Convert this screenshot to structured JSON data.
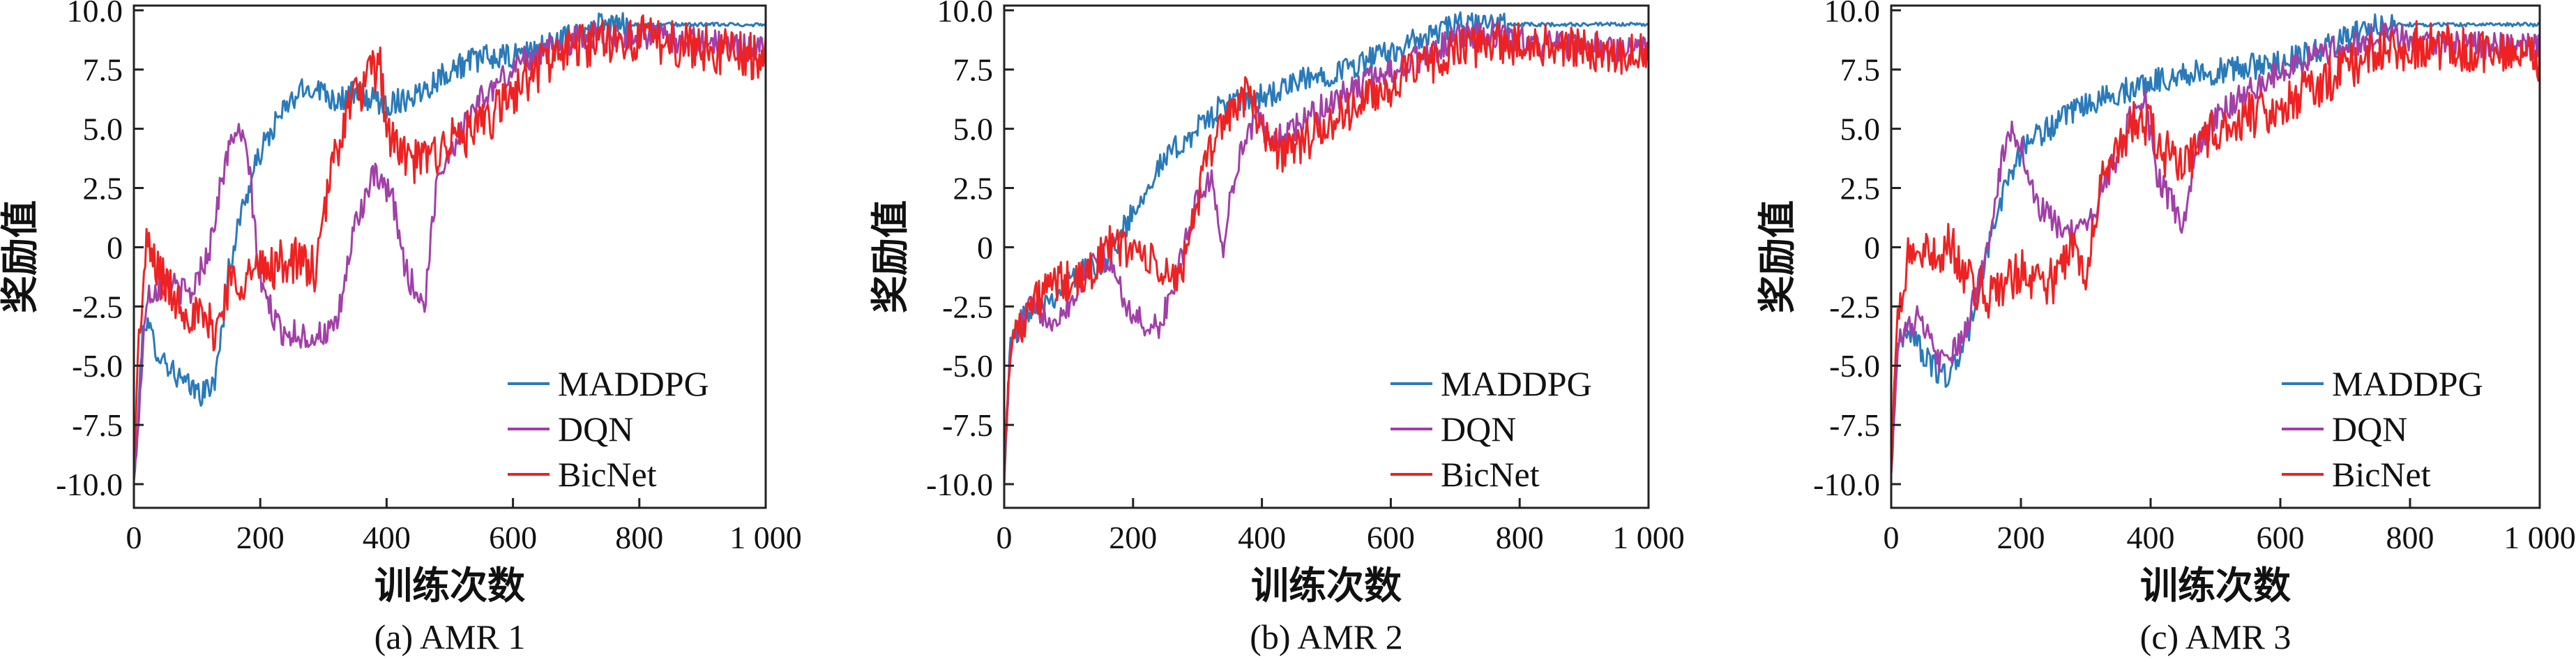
{
  "chart_data": [
    {
      "type": "line",
      "caption": "(a) AMR 1",
      "xlabel": "训练次数",
      "ylabel": "奖励值",
      "xlim": [
        0,
        1000
      ],
      "ylim": [
        -11,
        10.2
      ],
      "x_ticks": [
        "0",
        "200",
        "400",
        "600",
        "800",
        "1 000"
      ],
      "y_ticks": [
        "10.0",
        "7.5",
        "5.0",
        "2.5",
        "0",
        "-2.5",
        "-5.0",
        "-7.5",
        "-10.0"
      ],
      "legend_position": "bottom-right",
      "grid": false,
      "series": [
        {
          "name": "MADDPG",
          "color": "#2a7ab9",
          "noise": 0.55,
          "points": [
            [
              0,
              -10
            ],
            [
              5,
              -8
            ],
            [
              15,
              -3
            ],
            [
              40,
              -4.5
            ],
            [
              80,
              -5.8
            ],
            [
              110,
              -6.2
            ],
            [
              130,
              -5.5
            ],
            [
              150,
              -1
            ],
            [
              170,
              1.5
            ],
            [
              200,
              4
            ],
            [
              230,
              5.5
            ],
            [
              260,
              6.5
            ],
            [
              290,
              6.8
            ],
            [
              320,
              6.2
            ],
            [
              350,
              6.5
            ],
            [
              400,
              6
            ],
            [
              450,
              6.5
            ],
            [
              500,
              7.5
            ],
            [
              550,
              8
            ],
            [
              600,
              8
            ],
            [
              650,
              8.5
            ],
            [
              700,
              9
            ],
            [
              730,
              9.3
            ],
            [
              760,
              9.4
            ],
            [
              1000,
              9.4
            ]
          ]
        },
        {
          "name": "DQN",
          "color": "#a23fa8",
          "noise": 0.6,
          "points": [
            [
              0,
              -10
            ],
            [
              8,
              -7
            ],
            [
              20,
              -2
            ],
            [
              50,
              -1.5
            ],
            [
              90,
              -2
            ],
            [
              120,
              0
            ],
            [
              140,
              3
            ],
            [
              160,
              5
            ],
            [
              180,
              4
            ],
            [
              200,
              -1.5
            ],
            [
              230,
              -3.5
            ],
            [
              280,
              -3.8
            ],
            [
              320,
              -3.5
            ],
            [
              350,
              1
            ],
            [
              380,
              3
            ],
            [
              410,
              2
            ],
            [
              430,
              -1
            ],
            [
              460,
              -2.5
            ],
            [
              480,
              3
            ],
            [
              500,
              4
            ],
            [
              540,
              6
            ],
            [
              580,
              7
            ],
            [
              620,
              8
            ],
            [
              680,
              8.5
            ],
            [
              720,
              9
            ],
            [
              760,
              8.8
            ],
            [
              800,
              9
            ],
            [
              1000,
              8.3
            ]
          ]
        },
        {
          "name": "BicNet",
          "color": "#ee2222",
          "noise": 1.0,
          "points": [
            [
              0,
              -9
            ],
            [
              8,
              -4
            ],
            [
              20,
              0
            ],
            [
              60,
              -2
            ],
            [
              100,
              -3
            ],
            [
              130,
              -3.5
            ],
            [
              150,
              -1.5
            ],
            [
              200,
              -1
            ],
            [
              250,
              -0.5
            ],
            [
              290,
              -1
            ],
            [
              310,
              3
            ],
            [
              340,
              6
            ],
            [
              370,
              7
            ],
            [
              390,
              7.8
            ],
            [
              400,
              5
            ],
            [
              420,
              4
            ],
            [
              450,
              3.5
            ],
            [
              500,
              4.5
            ],
            [
              550,
              5
            ],
            [
              600,
              6.5
            ],
            [
              650,
              7.8
            ],
            [
              700,
              8.5
            ],
            [
              760,
              8.8
            ],
            [
              820,
              8.8
            ],
            [
              900,
              8.4
            ],
            [
              1000,
              8
            ]
          ]
        }
      ]
    },
    {
      "type": "line",
      "caption": "(b) AMR 2",
      "xlabel": "训练次数",
      "ylabel": "奖励值",
      "xlim": [
        0,
        1000
      ],
      "ylim": [
        -11,
        10.2
      ],
      "x_ticks": [
        "0",
        "200",
        "400",
        "600",
        "800",
        "1 000"
      ],
      "y_ticks": [
        "10.0",
        "7.5",
        "5.0",
        "2.5",
        "0",
        "-2.5",
        "-5.0",
        "-7.5",
        "-10.0"
      ],
      "legend_position": "bottom-right",
      "grid": false,
      "series": [
        {
          "name": "MADDPG",
          "color": "#2a7ab9",
          "noise": 0.55,
          "points": [
            [
              0,
              -9.5
            ],
            [
              10,
              -4
            ],
            [
              40,
              -2.5
            ],
            [
              80,
              -2
            ],
            [
              120,
              -1
            ],
            [
              160,
              -0.5
            ],
            [
              200,
              1.5
            ],
            [
              230,
              3
            ],
            [
              260,
              4
            ],
            [
              300,
              5
            ],
            [
              340,
              6
            ],
            [
              380,
              6.2
            ],
            [
              420,
              6.5
            ],
            [
              460,
              7
            ],
            [
              500,
              7.3
            ],
            [
              560,
              7.8
            ],
            [
              620,
              8.5
            ],
            [
              670,
              9
            ],
            [
              700,
              9.4
            ],
            [
              1000,
              9.4
            ]
          ]
        },
        {
          "name": "DQN",
          "color": "#a23fa8",
          "noise": 0.6,
          "points": [
            [
              0,
              -9.5
            ],
            [
              10,
              -4
            ],
            [
              40,
              -2.5
            ],
            [
              80,
              -3
            ],
            [
              110,
              -2
            ],
            [
              140,
              0
            ],
            [
              170,
              -1
            ],
            [
              200,
              -3
            ],
            [
              240,
              -3.5
            ],
            [
              270,
              -1
            ],
            [
              300,
              2
            ],
            [
              320,
              3
            ],
            [
              340,
              0
            ],
            [
              360,
              3.5
            ],
            [
              390,
              5.5
            ],
            [
              420,
              4.5
            ],
            [
              450,
              5
            ],
            [
              500,
              6
            ],
            [
              550,
              6.8
            ],
            [
              600,
              7.5
            ],
            [
              650,
              8
            ],
            [
              700,
              8.8
            ],
            [
              760,
              9
            ],
            [
              820,
              8.6
            ],
            [
              1000,
              8.3
            ]
          ]
        },
        {
          "name": "BicNet",
          "color": "#ee2222",
          "noise": 0.9,
          "points": [
            [
              0,
              -9.5
            ],
            [
              10,
              -4
            ],
            [
              40,
              -2.5
            ],
            [
              80,
              -1.5
            ],
            [
              120,
              -1.5
            ],
            [
              160,
              0
            ],
            [
              200,
              0
            ],
            [
              240,
              -1
            ],
            [
              270,
              -1.5
            ],
            [
              300,
              2
            ],
            [
              330,
              5
            ],
            [
              360,
              6
            ],
            [
              380,
              6.5
            ],
            [
              400,
              5
            ],
            [
              430,
              4
            ],
            [
              470,
              4.5
            ],
            [
              520,
              5.5
            ],
            [
              580,
              6.5
            ],
            [
              640,
              7.5
            ],
            [
              700,
              8.3
            ],
            [
              760,
              8.6
            ],
            [
              850,
              8.5
            ],
            [
              1000,
              8.1
            ]
          ]
        }
      ]
    },
    {
      "type": "line",
      "caption": "(c) AMR 3",
      "xlabel": "训练次数",
      "ylabel": "奖励值",
      "xlim": [
        0,
        1000
      ],
      "ylim": [
        -11,
        10.2
      ],
      "x_ticks": [
        "0",
        "200",
        "400",
        "600",
        "800",
        "1 000"
      ],
      "y_ticks": [
        "10.0",
        "7.5",
        "5.0",
        "2.5",
        "0",
        "-2.5",
        "-5.0",
        "-7.5",
        "-10.0"
      ],
      "legend_position": "bottom-right",
      "grid": false,
      "series": [
        {
          "name": "MADDPG",
          "color": "#2a7ab9",
          "noise": 0.55,
          "points": [
            [
              0,
              -9.5
            ],
            [
              10,
              -4
            ],
            [
              30,
              -3.5
            ],
            [
              60,
              -5
            ],
            [
              90,
              -5.5
            ],
            [
              120,
              -3.5
            ],
            [
              150,
              0
            ],
            [
              180,
              3
            ],
            [
              210,
              4.5
            ],
            [
              260,
              5.3
            ],
            [
              300,
              6
            ],
            [
              350,
              6.5
            ],
            [
              400,
              7
            ],
            [
              450,
              7.3
            ],
            [
              500,
              7.4
            ],
            [
              550,
              7.6
            ],
            [
              600,
              7.8
            ],
            [
              650,
              8.2
            ],
            [
              700,
              8.8
            ],
            [
              740,
              9.3
            ],
            [
              770,
              9.4
            ],
            [
              1000,
              9.4
            ]
          ]
        },
        {
          "name": "DQN",
          "color": "#a23fa8",
          "noise": 0.6,
          "points": [
            [
              0,
              -9.5
            ],
            [
              10,
              -4
            ],
            [
              40,
              -3
            ],
            [
              80,
              -5
            ],
            [
              110,
              -4
            ],
            [
              140,
              -1
            ],
            [
              160,
              2
            ],
            [
              180,
              5
            ],
            [
              200,
              4.5
            ],
            [
              220,
              2
            ],
            [
              250,
              1
            ],
            [
              290,
              0.5
            ],
            [
              320,
              2
            ],
            [
              350,
              4
            ],
            [
              370,
              5.5
            ],
            [
              390,
              6.5
            ],
            [
              410,
              3
            ],
            [
              430,
              2
            ],
            [
              450,
              0.8
            ],
            [
              470,
              4
            ],
            [
              500,
              5.5
            ],
            [
              550,
              6.5
            ],
            [
              600,
              7.5
            ],
            [
              650,
              8
            ],
            [
              700,
              8.5
            ],
            [
              760,
              9
            ],
            [
              820,
              8.7
            ],
            [
              1000,
              8.4
            ]
          ]
        },
        {
          "name": "BicNet",
          "color": "#ee2222",
          "noise": 1.0,
          "points": [
            [
              0,
              -9.5
            ],
            [
              10,
              -3
            ],
            [
              30,
              0
            ],
            [
              60,
              -0.5
            ],
            [
              90,
              0.2
            ],
            [
              120,
              -1.5
            ],
            [
              150,
              -2
            ],
            [
              200,
              -1
            ],
            [
              250,
              -1.5
            ],
            [
              280,
              0
            ],
            [
              300,
              -1
            ],
            [
              320,
              2.5
            ],
            [
              350,
              4
            ],
            [
              380,
              5.5
            ],
            [
              400,
              5
            ],
            [
              420,
              4
            ],
            [
              450,
              3.5
            ],
            [
              500,
              5
            ],
            [
              550,
              5.5
            ],
            [
              600,
              6
            ],
            [
              650,
              6.8
            ],
            [
              700,
              7.5
            ],
            [
              760,
              8.3
            ],
            [
              820,
              8.6
            ],
            [
              900,
              8.3
            ],
            [
              1000,
              8
            ]
          ]
        }
      ]
    }
  ]
}
